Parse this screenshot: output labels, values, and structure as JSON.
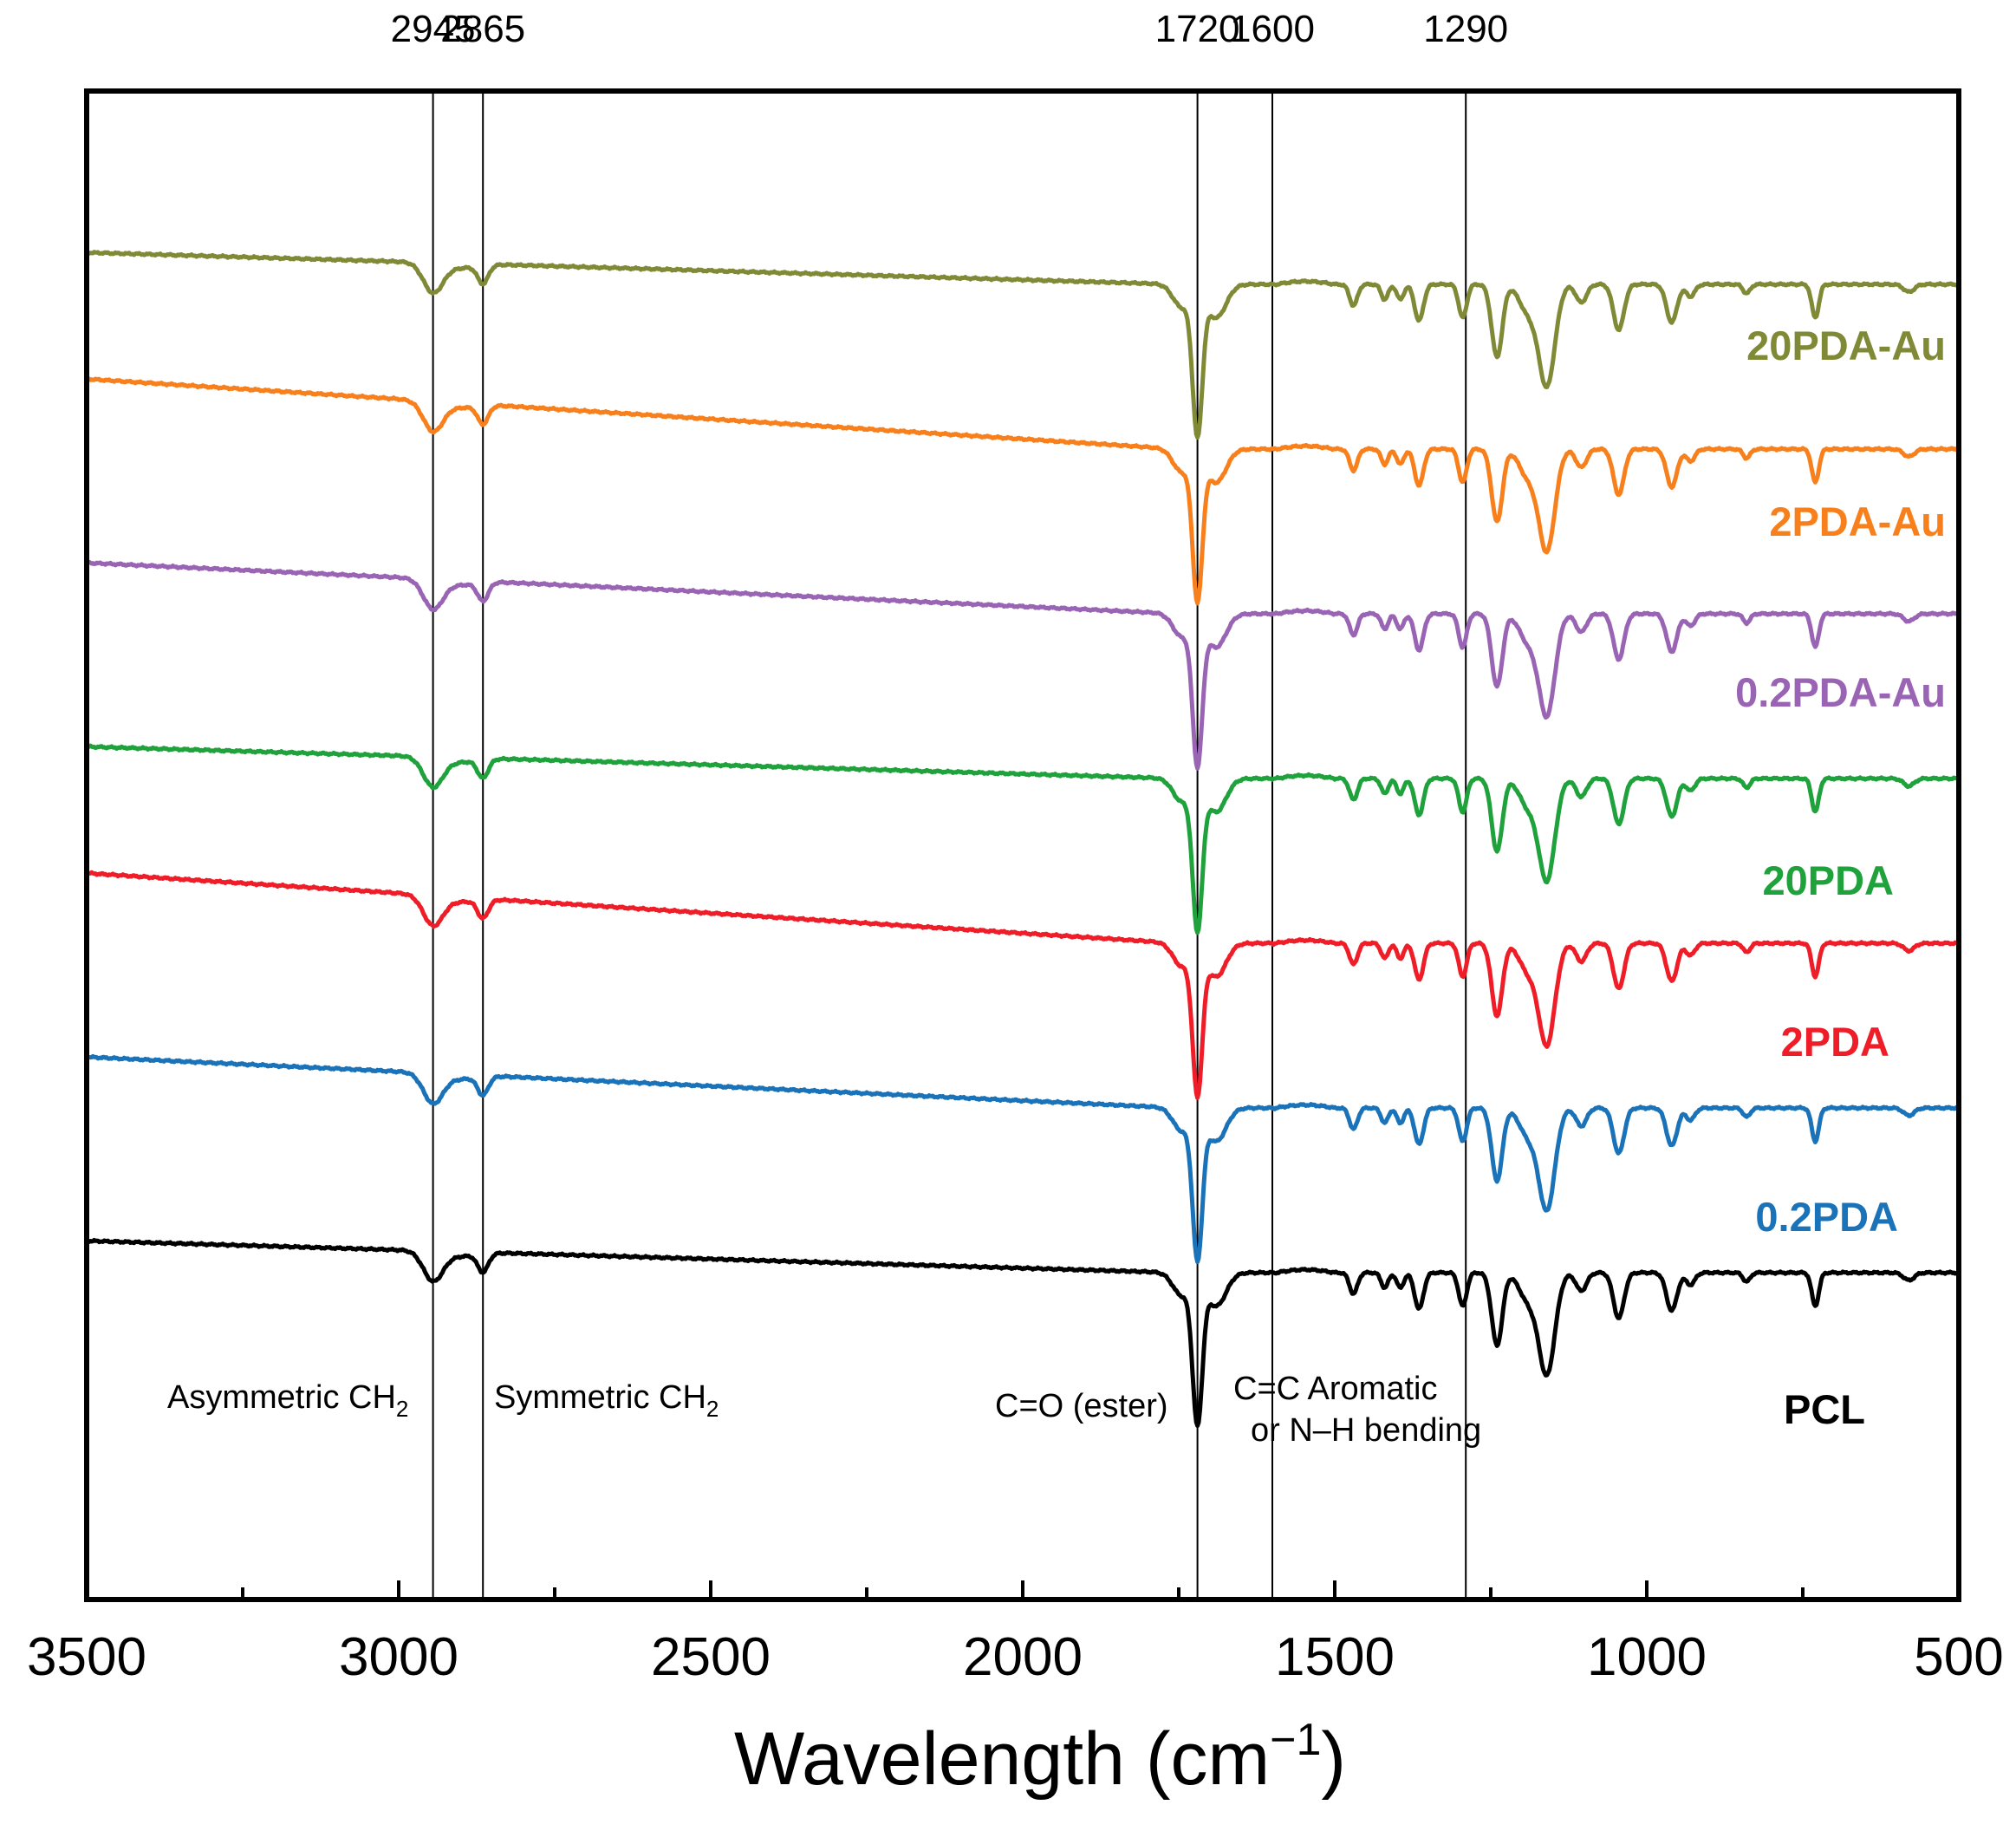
{
  "chart_data": {
    "type": "line",
    "title": "",
    "xlabel": "Wavelength (cm",
    "xlabel_sup": "−1",
    "xlabel_end": ")",
    "ylabel": "",
    "xlim": [
      3500,
      500
    ],
    "x_reversed": true,
    "y_ticks_shown": false,
    "grid": false,
    "x_ticks": [
      3500,
      3000,
      2500,
      2000,
      1500,
      1000,
      500
    ],
    "x_tick_labels": [
      "3500",
      "3000",
      "2500",
      "2000",
      "1500",
      "1000",
      "500"
    ],
    "reference_lines": [
      {
        "x": 2945,
        "label": "2945"
      },
      {
        "x": 2865,
        "label": "2865"
      },
      {
        "x": 1720,
        "label": "1720"
      },
      {
        "x": 1600,
        "label": "1600"
      },
      {
        "x": 1290,
        "label": "1290"
      }
    ],
    "annotations": [
      {
        "text": "Asymmetric CH",
        "sub": "2"
      },
      {
        "text": "Symmetric CH",
        "sub": "2"
      },
      {
        "text": "C=O (ester)"
      },
      {
        "text": "C=C Aromatic",
        "text2": "or N–H bending"
      }
    ],
    "series": [
      {
        "name": "20PDA-Au",
        "color": "#808a36",
        "offset": 6
      },
      {
        "name": "2PDA-Au",
        "color": "#f8801c",
        "offset": 5
      },
      {
        "name": "0.2PDA-Au",
        "color": "#9a64b4",
        "offset": 4
      },
      {
        "name": "20PDA",
        "color": "#1fa13c",
        "offset": 3
      },
      {
        "name": "2PDA",
        "color": "#ee1d27",
        "offset": 2
      },
      {
        "name": "0.2PDA",
        "color": "#1a72b8",
        "offset": 1
      },
      {
        "name": "PCL",
        "color": "#000000",
        "offset": 0
      }
    ]
  }
}
